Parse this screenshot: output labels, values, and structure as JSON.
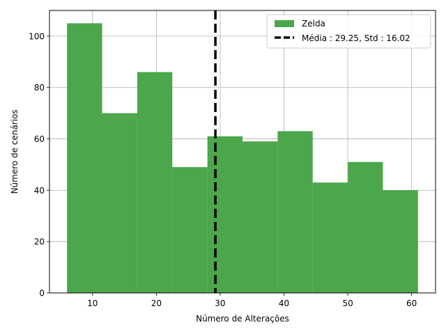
{
  "chart_data": {
    "type": "bar",
    "subtype": "histogram",
    "title": "",
    "xlabel": "Número de Alterações",
    "ylabel": "Número de cenários",
    "xlim": [
      3.25,
      63.75
    ],
    "ylim": [
      0,
      110
    ],
    "xticks": [
      10,
      20,
      30,
      40,
      50,
      60
    ],
    "yticks": [
      0,
      20,
      40,
      60,
      80,
      100
    ],
    "grid": true,
    "legend_position": "top-right",
    "series": [
      {
        "name": "Zelda",
        "color": "#4ca64c",
        "bin_edges": [
          6,
          11.5,
          17,
          22.5,
          28,
          33.5,
          39,
          44.5,
          50,
          55.5,
          61
        ],
        "values": [
          105,
          70,
          86,
          49,
          61,
          59,
          63,
          43,
          51,
          40
        ]
      }
    ],
    "annotations": [
      {
        "type": "vline",
        "x": 29.25,
        "style": "dashed",
        "color": "#000000",
        "label": "Média : 29.25, Std : 16.02"
      }
    ]
  }
}
